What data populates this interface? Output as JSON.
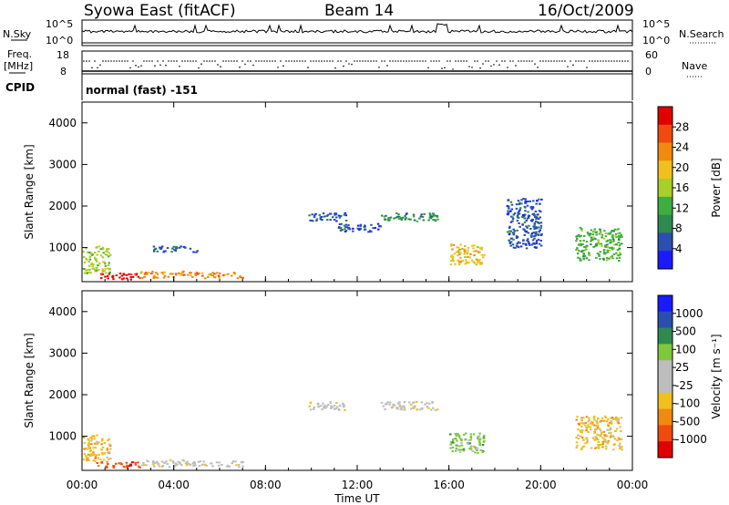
{
  "header": {
    "title": "Syowa East (fitACF)",
    "beam": "Beam 14",
    "date": "16/Oct/2009"
  },
  "top_panels": {
    "nsky_label": "N.Sky",
    "nsky_ticks": [
      "10^5",
      "10^0"
    ],
    "nsearch_label": "N.Search",
    "nsearch_ticks": [
      "10^5",
      "10^0"
    ],
    "freq_label": "Freq.",
    "freq_unit": "[MHz]",
    "freq_ticks": [
      "18",
      "8"
    ],
    "nave_label": "Nave",
    "nave_ticks": [
      "60",
      "0"
    ],
    "cpid_label": "CPID",
    "cpid_value": "normal (fast) -151"
  },
  "colors": {
    "power": [
      "#1a1aff",
      "#2a4fb0",
      "#2e8a4e",
      "#3fae3f",
      "#a8cf2a",
      "#f0c020",
      "#f08a10",
      "#f04a10",
      "#e00000"
    ],
    "velocity": [
      "#e00000",
      "#f04a10",
      "#f08a10",
      "#f0c020",
      "#bdbdbd",
      "#bdbdbd",
      "#7ec83c",
      "#2e8a4e",
      "#2a4fb0",
      "#1a1aff"
    ]
  },
  "chart_data": [
    {
      "type": "heatmap",
      "title": "",
      "xlabel": "",
      "ylabel": "Slant Range [km]",
      "xlim_hours": [
        0,
        24
      ],
      "ylim": [
        180,
        4500
      ],
      "x_ticks": [
        "00:00",
        "04:00",
        "08:00",
        "12:00",
        "16:00",
        "20:00",
        "00:00"
      ],
      "y_ticks": [
        "1000",
        "2000",
        "3000",
        "4000"
      ],
      "colorbar": {
        "label": "Power [dB]",
        "ticks": [
          "28",
          "24",
          "20",
          "16",
          "12",
          "8",
          "4"
        ],
        "range": [
          0,
          30
        ]
      },
      "regions": [
        {
          "x": [
            0.0,
            1.2
          ],
          "y": [
            400,
            1050
          ],
          "value": 16
        },
        {
          "x": [
            0.6,
            2.5
          ],
          "y": [
            250,
            400
          ],
          "value": 27
        },
        {
          "x": [
            2.5,
            4.5
          ],
          "y": [
            280,
            450
          ],
          "value": 20
        },
        {
          "x": [
            4.5,
            7.0
          ],
          "y": [
            280,
            420
          ],
          "value": 22
        },
        {
          "x": [
            3.0,
            5.0
          ],
          "y": [
            900,
            1050
          ],
          "value": 6
        },
        {
          "x": [
            9.8,
            11.5
          ],
          "y": [
            1650,
            1850
          ],
          "value": 6
        },
        {
          "x": [
            11.0,
            13.0
          ],
          "y": [
            1400,
            1600
          ],
          "value": 5
        },
        {
          "x": [
            13.0,
            15.5
          ],
          "y": [
            1650,
            1850
          ],
          "value": 8
        },
        {
          "x": [
            16.0,
            17.5
          ],
          "y": [
            600,
            1100
          ],
          "value": 18
        },
        {
          "x": [
            18.5,
            20.0
          ],
          "y": [
            1000,
            2200
          ],
          "value": 5
        },
        {
          "x": [
            21.5,
            23.5
          ],
          "y": [
            700,
            1500
          ],
          "value": 10
        }
      ]
    },
    {
      "type": "heatmap",
      "title": "",
      "xlabel": "Time UT",
      "ylabel": "Slant Range [km]",
      "xlim_hours": [
        0,
        24
      ],
      "ylim": [
        180,
        4500
      ],
      "x_ticks": [
        "00:00",
        "04:00",
        "08:00",
        "12:00",
        "16:00",
        "20:00",
        "00:00"
      ],
      "y_ticks": [
        "1000",
        "2000",
        "3000",
        "4000"
      ],
      "colorbar": {
        "label": "Velocity [m s⁻¹]",
        "ticks": [
          "1000",
          "500",
          "100",
          "25",
          "-25",
          "-100",
          "-500",
          "-1000"
        ],
        "range": [
          -1000,
          1000
        ]
      },
      "regions": [
        {
          "x": [
            0.0,
            1.2
          ],
          "y": [
            400,
            1050
          ],
          "value": -300
        },
        {
          "x": [
            0.6,
            2.5
          ],
          "y": [
            250,
            400
          ],
          "value": -700
        },
        {
          "x": [
            2.5,
            4.5
          ],
          "y": [
            280,
            450
          ],
          "value": -200
        },
        {
          "x": [
            4.5,
            7.0
          ],
          "y": [
            280,
            420
          ],
          "value": -120
        },
        {
          "x": [
            9.8,
            11.5
          ],
          "y": [
            1650,
            1850
          ],
          "value": 0
        },
        {
          "x": [
            13.0,
            15.5
          ],
          "y": [
            1650,
            1850
          ],
          "value": 10
        },
        {
          "x": [
            16.0,
            17.5
          ],
          "y": [
            600,
            1100
          ],
          "value": 200
        },
        {
          "x": [
            21.5,
            23.5
          ],
          "y": [
            700,
            1500
          ],
          "value": -400
        }
      ]
    }
  ]
}
